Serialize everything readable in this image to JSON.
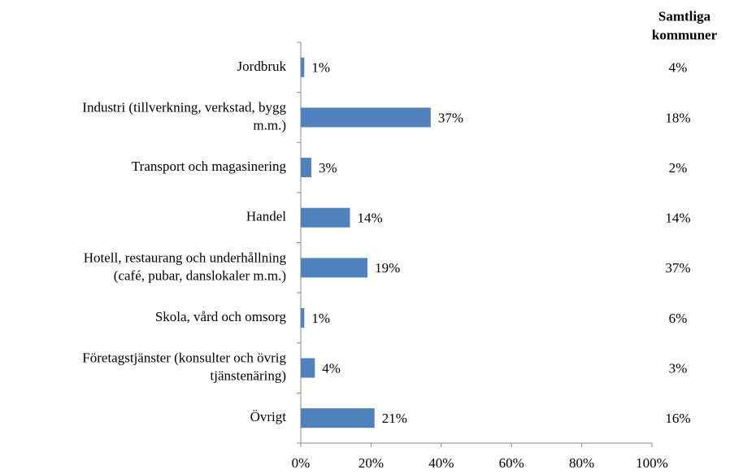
{
  "chart_data": {
    "type": "bar",
    "orientation": "horizontal",
    "categories": [
      "Jordbruk",
      "Industri (tillverkning, verkstad, bygg\nm.m.)",
      "Transport och magasinering",
      "Handel",
      "Hotell, restaurang och underhållning\n(café, pubar, danslokaler m.m.)",
      "Skola, vård och omsorg",
      "Företagstjänster (konsulter och övrig\ntjänstenäring)",
      "Övrigt"
    ],
    "values": [
      1,
      37,
      3,
      14,
      19,
      1,
      4,
      21
    ],
    "value_labels": [
      "1%",
      "37%",
      "3%",
      "14%",
      "19%",
      "1%",
      "4%",
      "21%"
    ],
    "color": "#4f81bd",
    "xlim": [
      0,
      100
    ],
    "xticks": [
      {
        "value": 0,
        "label": "0%"
      },
      {
        "value": 20,
        "label": "20%"
      },
      {
        "value": 40,
        "label": "40%"
      },
      {
        "value": 60,
        "label": "60%"
      },
      {
        "value": 80,
        "label": "80%"
      },
      {
        "value": 100,
        "label": "100%"
      }
    ],
    "comparison": {
      "title": "Samtliga\nkommuner",
      "labels": [
        "4%",
        "18%",
        "2%",
        "14%",
        "37%",
        "6%",
        "3%",
        "16%"
      ]
    }
  }
}
